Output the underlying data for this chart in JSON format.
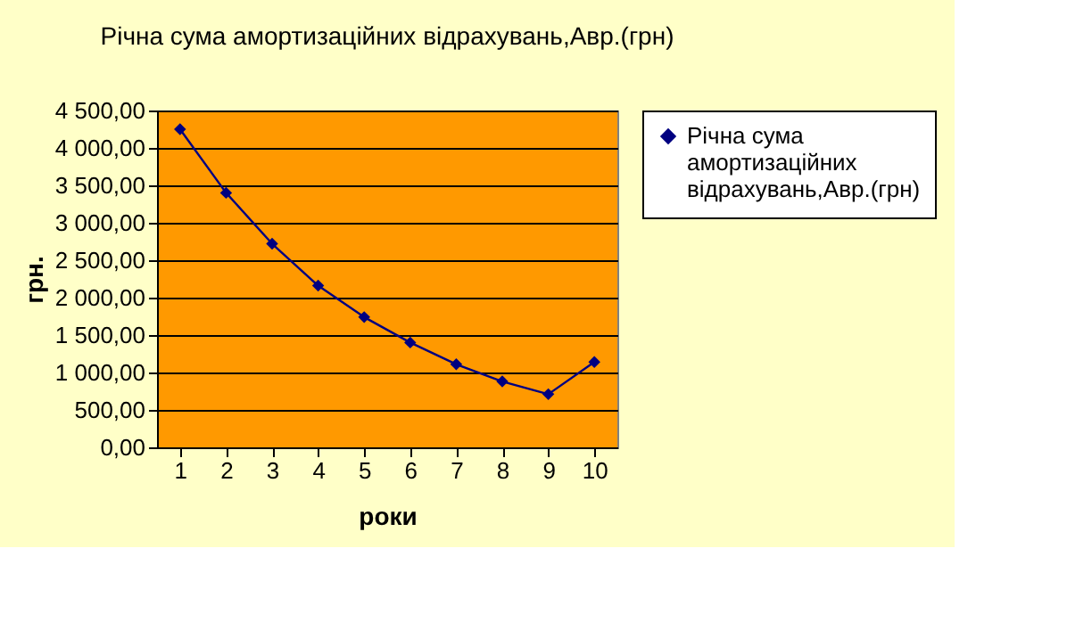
{
  "chart_data": {
    "type": "line",
    "title": "Річна сума амортизаційних відрахувань,Авр.(грн)",
    "xlabel": "роки",
    "ylabel": "грн.",
    "categories": [
      "1",
      "2",
      "3",
      "4",
      "5",
      "6",
      "7",
      "8",
      "9",
      "10"
    ],
    "series": [
      {
        "name": "Річна сума амортизаційних відрахувань,Авр.(грн)",
        "color": "#000080",
        "values": [
          4250,
          3400,
          2720,
          2160,
          1740,
          1400,
          1110,
          880,
          710,
          1140
        ]
      }
    ],
    "ylim": [
      0,
      4500
    ],
    "yticks": [
      {
        "value": 0,
        "label": "0,00"
      },
      {
        "value": 500,
        "label": "500,00"
      },
      {
        "value": 1000,
        "label": "1 000,00"
      },
      {
        "value": 1500,
        "label": "1 500,00"
      },
      {
        "value": 2000,
        "label": "2 000,00"
      },
      {
        "value": 2500,
        "label": "2 500,00"
      },
      {
        "value": 3000,
        "label": "3 000,00"
      },
      {
        "value": 3500,
        "label": "3 500,00"
      },
      {
        "value": 4000,
        "label": "4 000,00"
      },
      {
        "value": 4500,
        "label": "4 500,00"
      }
    ],
    "grid": "y",
    "legend": "right",
    "marker": "diamond",
    "line_style": "solid"
  }
}
